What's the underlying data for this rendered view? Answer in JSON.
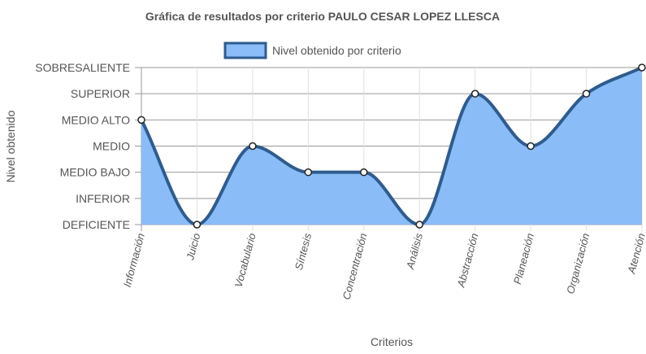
{
  "chart_data": {
    "type": "line",
    "title": "Gráfica de resultados por criterio PAULO CESAR LOPEZ LLESCA",
    "xlabel": "Criterios",
    "ylabel": "Nivel obtenido",
    "levels": [
      "DEFICIENTE",
      "INFERIOR",
      "MEDIO BAJO",
      "MEDIO",
      "MEDIO ALTO",
      "SUPERIOR",
      "SOBRESALIENTE"
    ],
    "categories": [
      "Información",
      "Juicio",
      "Vocabulario",
      "Síntesis",
      "Concentración",
      "Análisis",
      "Abstracción",
      "Planeación",
      "Organización",
      "Atención"
    ],
    "series": [
      {
        "name": "Nivel obtenido por criterio",
        "values": [
          "MEDIO ALTO",
          "DEFICIENTE",
          "MEDIO",
          "MEDIO BAJO",
          "MEDIO BAJO",
          "DEFICIENTE",
          "SUPERIOR",
          "MEDIO",
          "SUPERIOR",
          "SOBRESALIENTE"
        ]
      }
    ],
    "fill": true,
    "grid": true,
    "legend_position": "top",
    "colors": {
      "line": "#2f5b8e",
      "fill": "#8abcf7",
      "legend_fill": "#8abcf7",
      "legend_border": "#2f5b8e",
      "grid": "#e0e0e0",
      "axis": "#999999",
      "text": "#555555"
    }
  }
}
